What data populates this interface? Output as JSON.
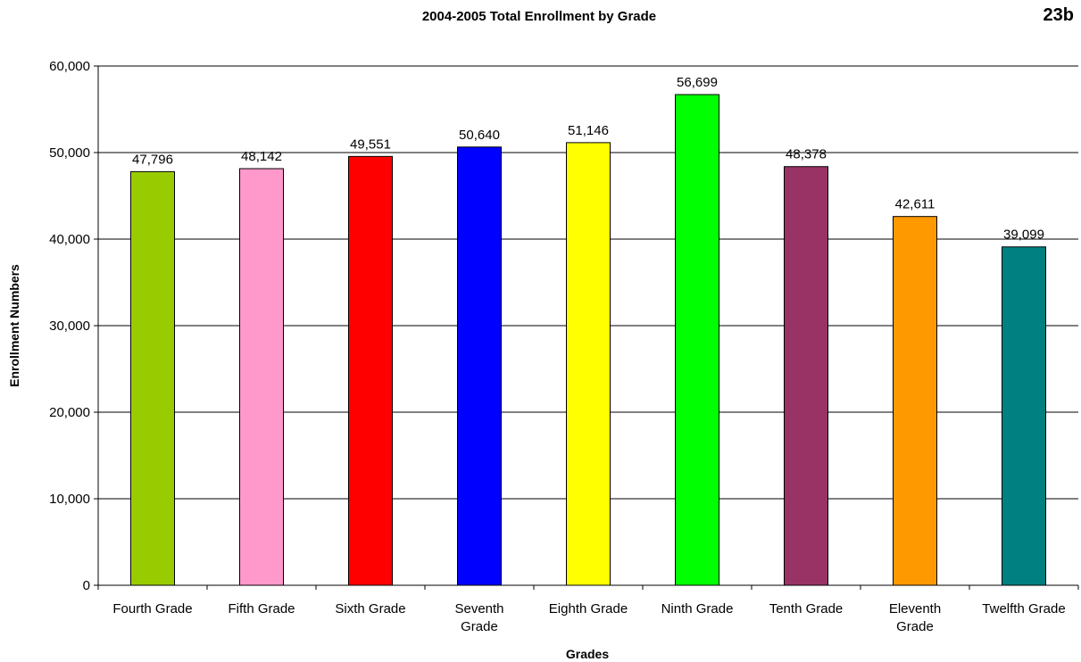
{
  "page_tag": "23b",
  "chart_data": {
    "type": "bar",
    "title": "2004-2005 Total Enrollment by Grade",
    "xlabel": "Grades",
    "ylabel": "Enrollment Numbers",
    "ylim": [
      0,
      60000
    ],
    "y_ticks": [
      0,
      10000,
      20000,
      30000,
      40000,
      50000,
      60000
    ],
    "y_tick_labels": [
      "0",
      "10,000",
      "20,000",
      "30,000",
      "40,000",
      "50,000",
      "60,000"
    ],
    "grid": "horizontal major gridlines",
    "legend": "none",
    "categories": [
      [
        "Fourth Grade"
      ],
      [
        "Fifth Grade"
      ],
      [
        "Sixth Grade"
      ],
      [
        "Seventh",
        "Grade"
      ],
      [
        "Eighth Grade"
      ],
      [
        "Ninth Grade"
      ],
      [
        "Tenth Grade"
      ],
      [
        "Eleventh",
        "Grade"
      ],
      [
        "Twelfth Grade"
      ]
    ],
    "values": [
      47796,
      48142,
      49551,
      50640,
      51146,
      56699,
      48378,
      42611,
      39099
    ],
    "data_labels": [
      "47,796",
      "48,142",
      "49,551",
      "50,640",
      "51,146",
      "56,699",
      "48,378",
      "42,611",
      "39,099"
    ],
    "bar_colors": [
      "#99CC00",
      "#FF99CC",
      "#FF0000",
      "#0000FF",
      "#FFFF00",
      "#00FF00",
      "#993366",
      "#FF9900",
      "#008080"
    ]
  }
}
